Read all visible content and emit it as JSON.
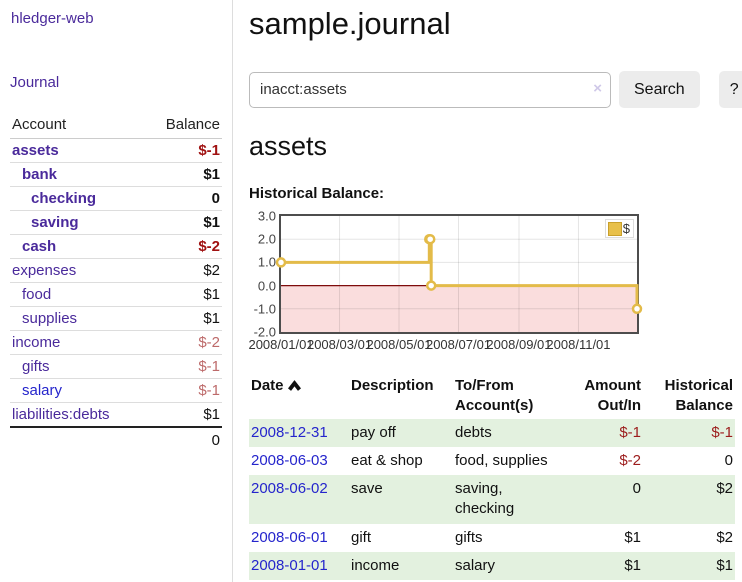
{
  "sidebar": {
    "brand": "hledger-web",
    "nav": [
      {
        "label": "Journal"
      }
    ],
    "table": {
      "headers": [
        "Account",
        "Balance"
      ],
      "rows": [
        {
          "account": "assets",
          "level": 1,
          "bold": true,
          "link_style": "purple",
          "balance": "$-1",
          "balance_style": "neg-strong"
        },
        {
          "account": "bank",
          "level": 2,
          "bold": true,
          "link_style": "purple",
          "balance": "$1",
          "balance_style": "pos"
        },
        {
          "account": "checking",
          "level": 3,
          "bold": true,
          "link_style": "purple",
          "balance": "0",
          "balance_style": "pos"
        },
        {
          "account": "saving",
          "level": 3,
          "bold": true,
          "link_style": "purple",
          "balance": "$1",
          "balance_style": "pos"
        },
        {
          "account": "cash",
          "level": 2,
          "bold": true,
          "link_style": "purple",
          "balance": "$-2",
          "balance_style": "neg-strong"
        },
        {
          "account": "expenses",
          "level": 1,
          "bold": false,
          "link_style": "purple",
          "balance": "$2",
          "balance_style": "pos"
        },
        {
          "account": "food",
          "level": 2,
          "bold": false,
          "link_style": "purple",
          "balance": "$1",
          "balance_style": "pos"
        },
        {
          "account": "supplies",
          "level": 2,
          "bold": false,
          "link_style": "purple",
          "balance": "$1",
          "balance_style": "pos"
        },
        {
          "account": "income",
          "level": 1,
          "bold": false,
          "link_style": "purple",
          "balance": "$-2",
          "balance_style": "neg-soft"
        },
        {
          "account": "gifts",
          "level": 2,
          "bold": false,
          "link_style": "purple",
          "balance": "$-1",
          "balance_style": "neg-soft"
        },
        {
          "account": "salary",
          "level": 2,
          "bold": false,
          "link_style": "blue",
          "balance": "$-1",
          "balance_style": "neg-soft"
        },
        {
          "account": "liabilities:debts",
          "level": 1,
          "bold": false,
          "link_style": "purple",
          "balance": "$1",
          "balance_style": "pos"
        }
      ],
      "total": "0"
    }
  },
  "header": {
    "title": "sample.journal"
  },
  "search": {
    "value": "inacct:assets",
    "clear_icon": "×",
    "button_label": "Search",
    "help_label": "?"
  },
  "main": {
    "account_heading": "assets",
    "chart_heading": "Historical Balance:"
  },
  "chart_data": {
    "type": "line",
    "step": true,
    "title": "Historical Balance:",
    "legend": [
      {
        "label": "$",
        "color": "#e8c04a"
      }
    ],
    "legend_position": "top-right",
    "grid": true,
    "ylim": [
      -2,
      3
    ],
    "yticks": [
      "3.0",
      "2.0",
      "1.0",
      "0.0",
      "-1.0",
      "-2.0"
    ],
    "x_range": [
      "2008-01-01",
      "2008-12-31"
    ],
    "xticks": [
      {
        "date": "2008-01-01",
        "label": "2008/01/01"
      },
      {
        "date": "2008-03-01",
        "label": "2008/03/01"
      },
      {
        "date": "2008-05-01",
        "label": "2008/05/01"
      },
      {
        "date": "2008-07-01",
        "label": "2008/07/01"
      },
      {
        "date": "2008-09-01",
        "label": "2008/09/01"
      },
      {
        "date": "2008-11-01",
        "label": "2008/11/01"
      }
    ],
    "series": [
      {
        "name": "$",
        "points": [
          {
            "date": "2008-01-01",
            "value": 1
          },
          {
            "date": "2008-06-01",
            "value": 2
          },
          {
            "date": "2008-06-02",
            "value": 2
          },
          {
            "date": "2008-06-03",
            "value": 0
          },
          {
            "date": "2008-12-31",
            "value": -1
          }
        ]
      }
    ],
    "colors": {
      "line": "#e3bb49",
      "marker_fill": "#ffffff",
      "negative_region": "#fadddd",
      "zero_line": "#7e0c0c",
      "gridline": "rgba(0,0,0,0.10)",
      "border": "#4d4d4d"
    }
  },
  "register": {
    "headers": [
      {
        "label": "Date",
        "sortable": true
      },
      {
        "label": "Description"
      },
      {
        "label": "To/From Account(s)"
      },
      {
        "label": "Amount Out/In",
        "align": "right"
      },
      {
        "label": "Historical Balance",
        "align": "right"
      }
    ],
    "rows": [
      {
        "date": "2008-12-31",
        "description": "pay off",
        "accounts": "debts",
        "amount": "$-1",
        "amount_neg": true,
        "balance": "$-1",
        "balance_neg": true,
        "striped": true
      },
      {
        "date": "2008-06-03",
        "description": "eat & shop",
        "accounts": "food, supplies",
        "amount": "$-2",
        "amount_neg": true,
        "balance": "0",
        "balance_neg": false,
        "striped": false
      },
      {
        "date": "2008-06-02",
        "description": "save",
        "accounts": "saving,\nchecking",
        "amount": "0",
        "amount_neg": false,
        "balance": "$2",
        "balance_neg": false,
        "striped": true
      },
      {
        "date": "2008-06-01",
        "description": "gift",
        "accounts": "gifts",
        "amount": "$1",
        "amount_neg": false,
        "balance": "$2",
        "balance_neg": false,
        "striped": false
      },
      {
        "date": "2008-01-01",
        "description": "income",
        "accounts": "salary",
        "amount": "$1",
        "amount_neg": false,
        "balance": "$1",
        "balance_neg": false,
        "striped": true
      }
    ]
  }
}
